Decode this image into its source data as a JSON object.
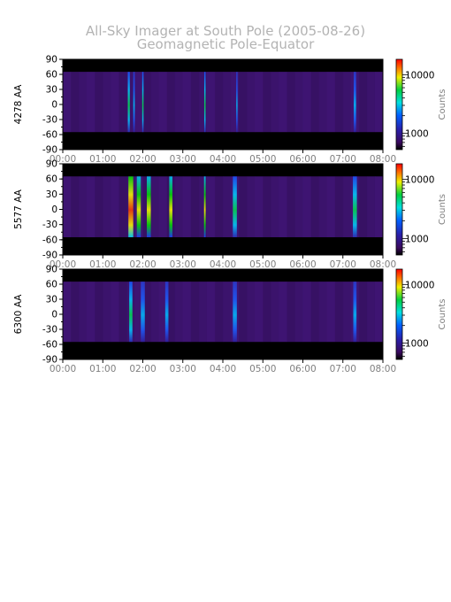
{
  "title": "All-Sky Imager at South Pole (2005-08-26)",
  "subtitle": "Geomagnetic Pole-Equator",
  "colors": {
    "title_gray": "#b3b3b3",
    "xtick_gray": "#7f7f7f",
    "background_band": "#000000",
    "image_base": "#3a1268"
  },
  "chart_data": [
    {
      "type": "heatmap",
      "ylabel": "4278 AA",
      "y_ticks": [
        "90",
        "60",
        "30",
        "0",
        "-30",
        "-60",
        "-90"
      ],
      "x_ticks": [
        "00:00",
        "01:00",
        "02:00",
        "03:00",
        "04:00",
        "05:00",
        "06:00",
        "07:00",
        "08:00"
      ],
      "xlim": [
        "00:00",
        "08:00"
      ],
      "ylim": [
        -90,
        90
      ],
      "data_ylim": [
        -55,
        65
      ],
      "colorbar": {
        "label": "Counts",
        "ticks": [
          "10000",
          "1000"
        ],
        "scale": "log"
      },
      "events": [
        {
          "t": 1.65,
          "w": 0.05,
          "i": 0.55
        },
        {
          "t": 1.78,
          "w": 0.04,
          "i": 0.45
        },
        {
          "t": 2.0,
          "w": 0.03,
          "i": 0.6
        },
        {
          "t": 3.55,
          "w": 0.03,
          "i": 0.5
        },
        {
          "t": 4.35,
          "w": 0.03,
          "i": 0.4
        },
        {
          "t": 7.3,
          "w": 0.06,
          "i": 0.3
        }
      ]
    },
    {
      "type": "heatmap",
      "ylabel": "5577 AA",
      "y_ticks": [
        "90",
        "60",
        "30",
        "0",
        "-30",
        "-60",
        "-90"
      ],
      "x_ticks": [
        "00:00",
        "01:00",
        "02:00",
        "03:00",
        "04:00",
        "05:00",
        "06:00",
        "07:00",
        "08:00"
      ],
      "xlim": [
        "00:00",
        "08:00"
      ],
      "ylim": [
        -90,
        90
      ],
      "data_ylim": [
        -55,
        65
      ],
      "colorbar": {
        "label": "Counts",
        "ticks": [
          "10000",
          "1000"
        ],
        "scale": "log"
      },
      "events": [
        {
          "t": 1.7,
          "w": 0.12,
          "i": 0.9
        },
        {
          "t": 1.9,
          "w": 0.1,
          "i": 0.8
        },
        {
          "t": 2.15,
          "w": 0.1,
          "i": 0.75
        },
        {
          "t": 2.7,
          "w": 0.08,
          "i": 0.65
        },
        {
          "t": 3.55,
          "w": 0.04,
          "i": 0.7
        },
        {
          "t": 4.3,
          "w": 0.1,
          "i": 0.6
        },
        {
          "t": 7.3,
          "w": 0.1,
          "i": 0.6
        }
      ]
    },
    {
      "type": "heatmap",
      "ylabel": "6300 AA",
      "y_ticks": [
        "90",
        "60",
        "30",
        "0",
        "-30",
        "-60",
        "-90"
      ],
      "x_ticks": [
        "00:00",
        "01:00",
        "02:00",
        "03:00",
        "04:00",
        "05:00",
        "06:00",
        "07:00",
        "08:00"
      ],
      "xlim": [
        "00:00",
        "08:00"
      ],
      "ylim": [
        -90,
        90
      ],
      "data_ylim": [
        -55,
        65
      ],
      "colorbar": {
        "label": "Counts",
        "ticks": [
          "10000",
          "1000"
        ],
        "scale": "log"
      },
      "events": [
        {
          "t": 1.7,
          "w": 0.08,
          "i": 0.5
        },
        {
          "t": 2.0,
          "w": 0.1,
          "i": 0.45
        },
        {
          "t": 2.6,
          "w": 0.08,
          "i": 0.4
        },
        {
          "t": 4.3,
          "w": 0.1,
          "i": 0.45
        },
        {
          "t": 7.3,
          "w": 0.08,
          "i": 0.35
        }
      ]
    }
  ]
}
